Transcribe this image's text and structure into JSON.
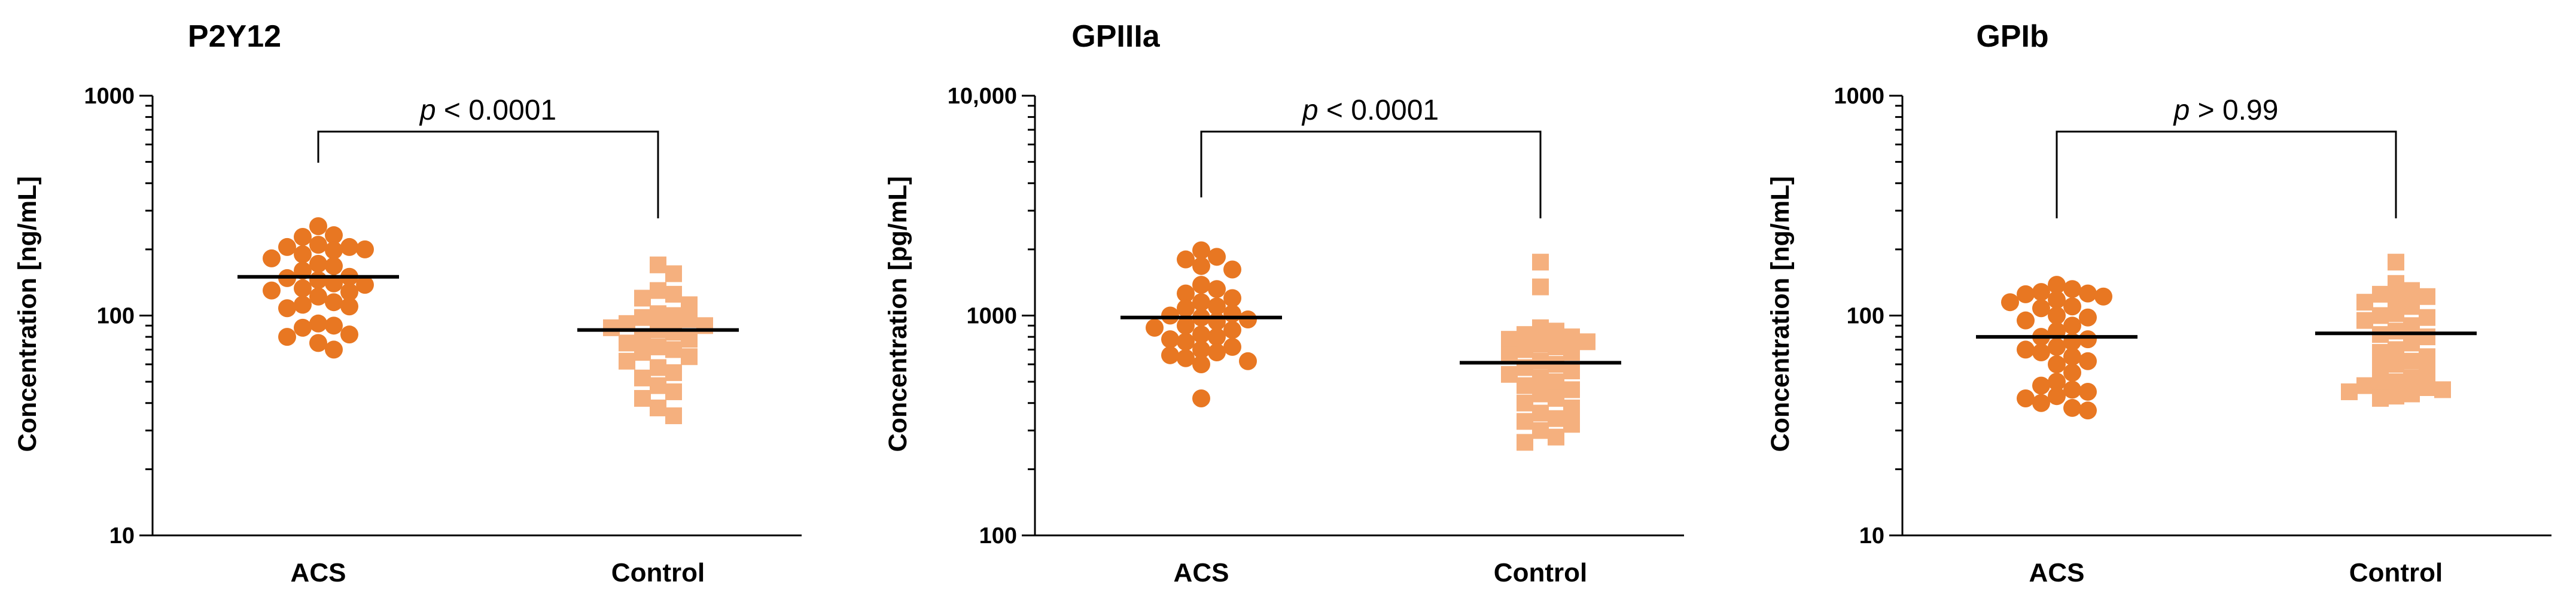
{
  "chart_data": [
    {
      "type": "scatter",
      "title": "P2Y12",
      "ylabel": "Concentration [ng/mL]",
      "yscale": "log",
      "ylim": [
        10,
        1000
      ],
      "yticks": [
        {
          "value": 10,
          "label": "10"
        },
        {
          "value": 100,
          "label": "100"
        },
        {
          "value": 1000,
          "label": "1000"
        }
      ],
      "categories": [
        "ACS",
        "Control"
      ],
      "comparison": {
        "prefix": "p",
        "text": " < 0.0001"
      },
      "groups": [
        {
          "name": "ACS",
          "color": "#E87722",
          "marker": "circle",
          "median": 150,
          "values": [
            255,
            228,
            232,
            210,
            205,
            198,
            200,
            205,
            190,
            182,
            172,
            168,
            160,
            150,
            148,
            145,
            140,
            138,
            133,
            130,
            128,
            122,
            115,
            112,
            110,
            108,
            92,
            90,
            88,
            82,
            80,
            75,
            70
          ]
        },
        {
          "name": "Control",
          "color": "#F5B07E",
          "marker": "square",
          "median": 86,
          "values": [
            170,
            155,
            130,
            125,
            120,
            112,
            102,
            100,
            98,
            96,
            92,
            90,
            88,
            86,
            84,
            80,
            78,
            75,
            72,
            70,
            68,
            65,
            62,
            58,
            55,
            52,
            48,
            45,
            42,
            38,
            35
          ]
        }
      ]
    },
    {
      "type": "scatter",
      "title": "GPIIIa",
      "ylabel": "Concentration [pg/mL]",
      "yscale": "log",
      "ylim": [
        100,
        10000
      ],
      "yticks": [
        {
          "value": 100,
          "label": "100"
        },
        {
          "value": 1000,
          "label": "1000"
        },
        {
          "value": 10000,
          "label": "10,000"
        }
      ],
      "categories": [
        "ACS",
        "Control"
      ],
      "comparison": {
        "prefix": "p",
        "text": " < 0.0001"
      },
      "groups": [
        {
          "name": "ACS",
          "color": "#E87722",
          "marker": "circle",
          "median": 980,
          "values": [
            1980,
            1850,
            1800,
            1680,
            1620,
            1380,
            1320,
            1260,
            1200,
            1150,
            1100,
            1080,
            1020,
            1000,
            980,
            960,
            940,
            900,
            880,
            860,
            820,
            800,
            780,
            760,
            720,
            700,
            680,
            660,
            640,
            620,
            600,
            420
          ]
        },
        {
          "name": "Control",
          "color": "#F5B07E",
          "marker": "square",
          "median": 610,
          "values": [
            1750,
            1350,
            880,
            850,
            820,
            800,
            780,
            760,
            740,
            720,
            700,
            680,
            660,
            620,
            600,
            580,
            560,
            540,
            520,
            500,
            480,
            460,
            440,
            420,
            400,
            380,
            360,
            340,
            330,
            320,
            300,
            280,
            265
          ]
        }
      ]
    },
    {
      "type": "scatter",
      "title": "GPIb",
      "ylabel": "Concentration [ng/mL]",
      "yscale": "log",
      "ylim": [
        10,
        1000
      ],
      "yticks": [
        {
          "value": 10,
          "label": "10"
        },
        {
          "value": 100,
          "label": "100"
        },
        {
          "value": 1000,
          "label": "1000"
        }
      ],
      "categories": [
        "ACS",
        "Control"
      ],
      "comparison": {
        "prefix": "p",
        "text": " > 0.99"
      },
      "groups": [
        {
          "name": "ACS",
          "color": "#E87722",
          "marker": "circle",
          "median": 80,
          "values": [
            138,
            132,
            128,
            126,
            125,
            122,
            118,
            115,
            110,
            108,
            100,
            98,
            95,
            90,
            85,
            80,
            78,
            76,
            72,
            70,
            68,
            65,
            62,
            60,
            55,
            50,
            48,
            46,
            45,
            43,
            42,
            40,
            38,
            37
          ]
        },
        {
          "name": "Control",
          "color": "#F5B07E",
          "marker": "square",
          "median": 83,
          "values": [
            175,
            140,
            130,
            125,
            122,
            120,
            115,
            110,
            102,
            100,
            98,
            95,
            90,
            85,
            82,
            80,
            75,
            70,
            68,
            65,
            62,
            60,
            58,
            55,
            52,
            50,
            49,
            48,
            47,
            46,
            45,
            44,
            43,
            42
          ]
        }
      ]
    }
  ]
}
